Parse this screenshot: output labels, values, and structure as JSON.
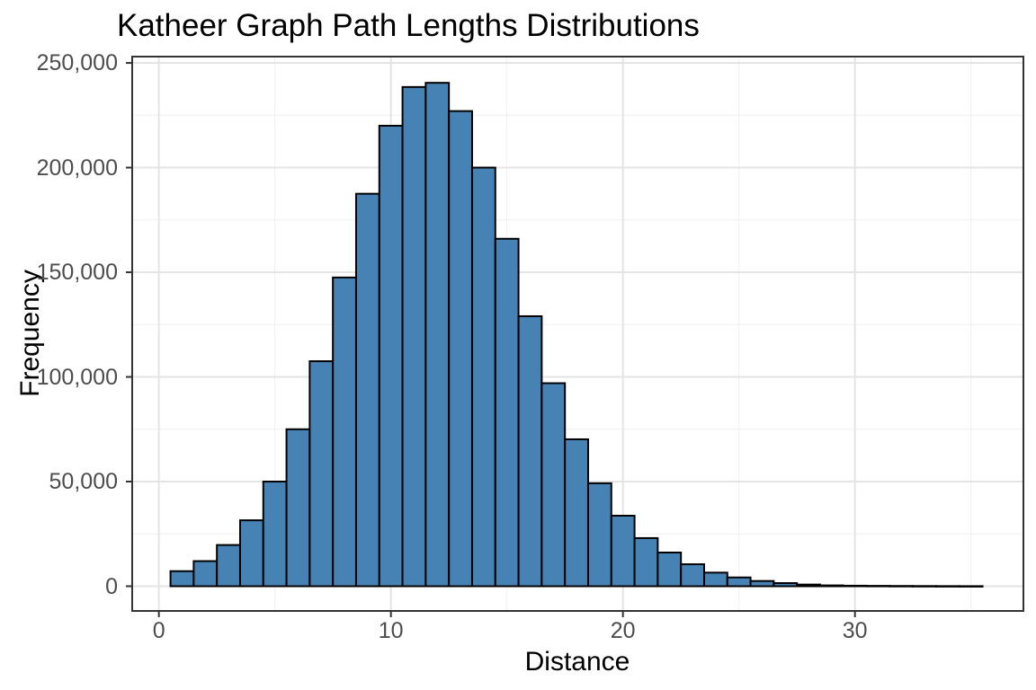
{
  "figure": {
    "title": "Katheer Graph Path Lengths Distributions",
    "x_axis_title": "Distance",
    "y_axis_title": "Frequency"
  },
  "chart_data": {
    "type": "bar",
    "subtype": "histogram",
    "title": "Katheer Graph Path Lengths Distributions",
    "xlabel": "Distance",
    "ylabel": "Frequency",
    "bar_width": 1,
    "categories": [
      1,
      2,
      3,
      4,
      5,
      6,
      7,
      8,
      9,
      10,
      11,
      12,
      13,
      14,
      15,
      16,
      17,
      18,
      19,
      20,
      21,
      22,
      23,
      24,
      25,
      26,
      27,
      28,
      29,
      30,
      31,
      32,
      33,
      34,
      35
    ],
    "values": [
      7200,
      12000,
      19700,
      31500,
      50000,
      75000,
      107500,
      147500,
      187500,
      220000,
      238500,
      240500,
      227000,
      200000,
      166000,
      129000,
      97000,
      70200,
      49200,
      33700,
      23000,
      16100,
      10500,
      6500,
      4200,
      2500,
      1500,
      800,
      400,
      250,
      180,
      130,
      90,
      60,
      40
    ],
    "xlim": [
      -1.15,
      37.26
    ],
    "ylim": [
      -11800,
      253030
    ],
    "x_major_ticks": [
      0,
      10,
      20,
      30
    ],
    "x_major_tick_labels": [
      "0",
      "10",
      "20",
      "30"
    ],
    "x_minor_ticks": [
      5,
      15,
      25,
      35
    ],
    "y_major_ticks": [
      0,
      50000,
      100000,
      150000,
      200000,
      250000
    ],
    "y_major_tick_labels": [
      "0",
      "50,000",
      "100,000",
      "150,000",
      "200,000",
      "250,000"
    ],
    "y_minor_ticks": [
      25000,
      75000,
      125000,
      175000,
      225000
    ],
    "grid": true,
    "legend_position": "none",
    "colors": {
      "bar_fill": "#4682B4",
      "bar_stroke": "#000000",
      "grid_major": "#e4e4e4",
      "grid_minor": "#efefef",
      "panel_border": "#333333",
      "tick_mark": "#333333",
      "tick_label": "#4d4d4d",
      "title": "#000000",
      "axis_title": "#000000",
      "background": "#ffffff"
    }
  }
}
